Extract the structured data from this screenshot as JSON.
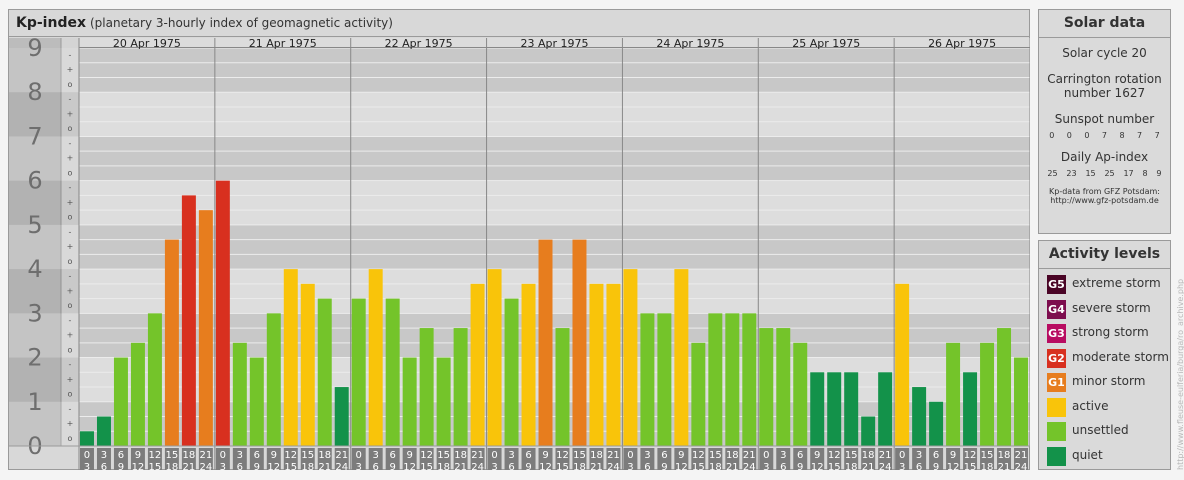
{
  "header": {
    "title": "Kp-index",
    "subtitle": "(planetary 3-hourly index of geomagnetic activity)"
  },
  "chart_data": {
    "type": "bar",
    "ylim": [
      0,
      9
    ],
    "y_ticks": [
      "0",
      "1",
      "2",
      "3",
      "4",
      "5",
      "6",
      "7",
      "8",
      "9"
    ],
    "y_minor_ticks": [
      "o",
      "+",
      "-"
    ],
    "days": [
      "20 Apr 1975",
      "21 Apr 1975",
      "22 Apr 1975",
      "23 Apr 1975",
      "24 Apr 1975",
      "25 Apr 1975",
      "26 Apr 1975"
    ],
    "intervals": [
      [
        "0",
        "3"
      ],
      [
        "3",
        "6"
      ],
      [
        "6",
        "9"
      ],
      [
        "9",
        "12"
      ],
      [
        "12",
        "15"
      ],
      [
        "15",
        "18"
      ],
      [
        "18",
        "21"
      ],
      [
        "21",
        "24"
      ]
    ],
    "values": [
      0.333,
      0.667,
      2.0,
      2.333,
      3.0,
      4.667,
      5.667,
      5.333,
      6.0,
      2.333,
      2.0,
      3.0,
      4.0,
      3.667,
      3.333,
      1.333,
      3.333,
      4.0,
      3.333,
      2.0,
      2.667,
      2.0,
      2.667,
      3.667,
      4.0,
      3.333,
      3.667,
      4.667,
      2.667,
      4.667,
      3.667,
      3.667,
      4.0,
      3.0,
      3.0,
      4.0,
      2.333,
      3.0,
      3.0,
      3.0,
      2.667,
      2.667,
      2.333,
      1.667,
      1.667,
      1.667,
      0.667,
      1.667,
      3.667,
      1.333,
      1.0,
      2.333,
      1.667,
      2.333,
      2.667,
      2.0
    ],
    "colors": {
      "quiet": "#13924a",
      "unsettled": "#74c42a",
      "active": "#f9c40a",
      "G1": "#e77d1e",
      "G2": "#d8301f",
      "G3": "#b80c61",
      "G4": "#7d0d4e",
      "G5": "#4a0526"
    }
  },
  "solar_data": {
    "title": "Solar data",
    "cycle": "Solar cycle 20",
    "carrington_line1": "Carrington rotation",
    "carrington_line2": "number 1627",
    "sunspot_label": "Sunspot number",
    "sunspot_values": [
      "0",
      "0",
      "0",
      "7",
      "8",
      "7",
      "7"
    ],
    "ap_label": "Daily Ap-index",
    "ap_values": [
      "25",
      "23",
      "15",
      "25",
      "17",
      "8",
      "9"
    ],
    "source_line1": "Kp-data from GFZ Potsdam:",
    "source_line2": "http://www.gfz-potsdam.de"
  },
  "activity_levels": {
    "title": "Activity levels",
    "items": [
      {
        "badge": "G5",
        "label": "extreme storm",
        "color": "#4a0526"
      },
      {
        "badge": "G4",
        "label": "severe storm",
        "color": "#7d0d4e"
      },
      {
        "badge": "G3",
        "label": "strong storm",
        "color": "#b80c61"
      },
      {
        "badge": "G2",
        "label": "moderate storm",
        "color": "#d8301f"
      },
      {
        "badge": "G1",
        "label": "minor storm",
        "color": "#e77d1e"
      },
      {
        "badge": "",
        "label": "active",
        "color": "#f9c40a"
      },
      {
        "badge": "",
        "label": "unsettled",
        "color": "#74c42a"
      },
      {
        "badge": "",
        "label": "quiet",
        "color": "#13924a"
      }
    ]
  },
  "watermark": "http://www.fleuse-eulferia/burga/ro_archive.php"
}
